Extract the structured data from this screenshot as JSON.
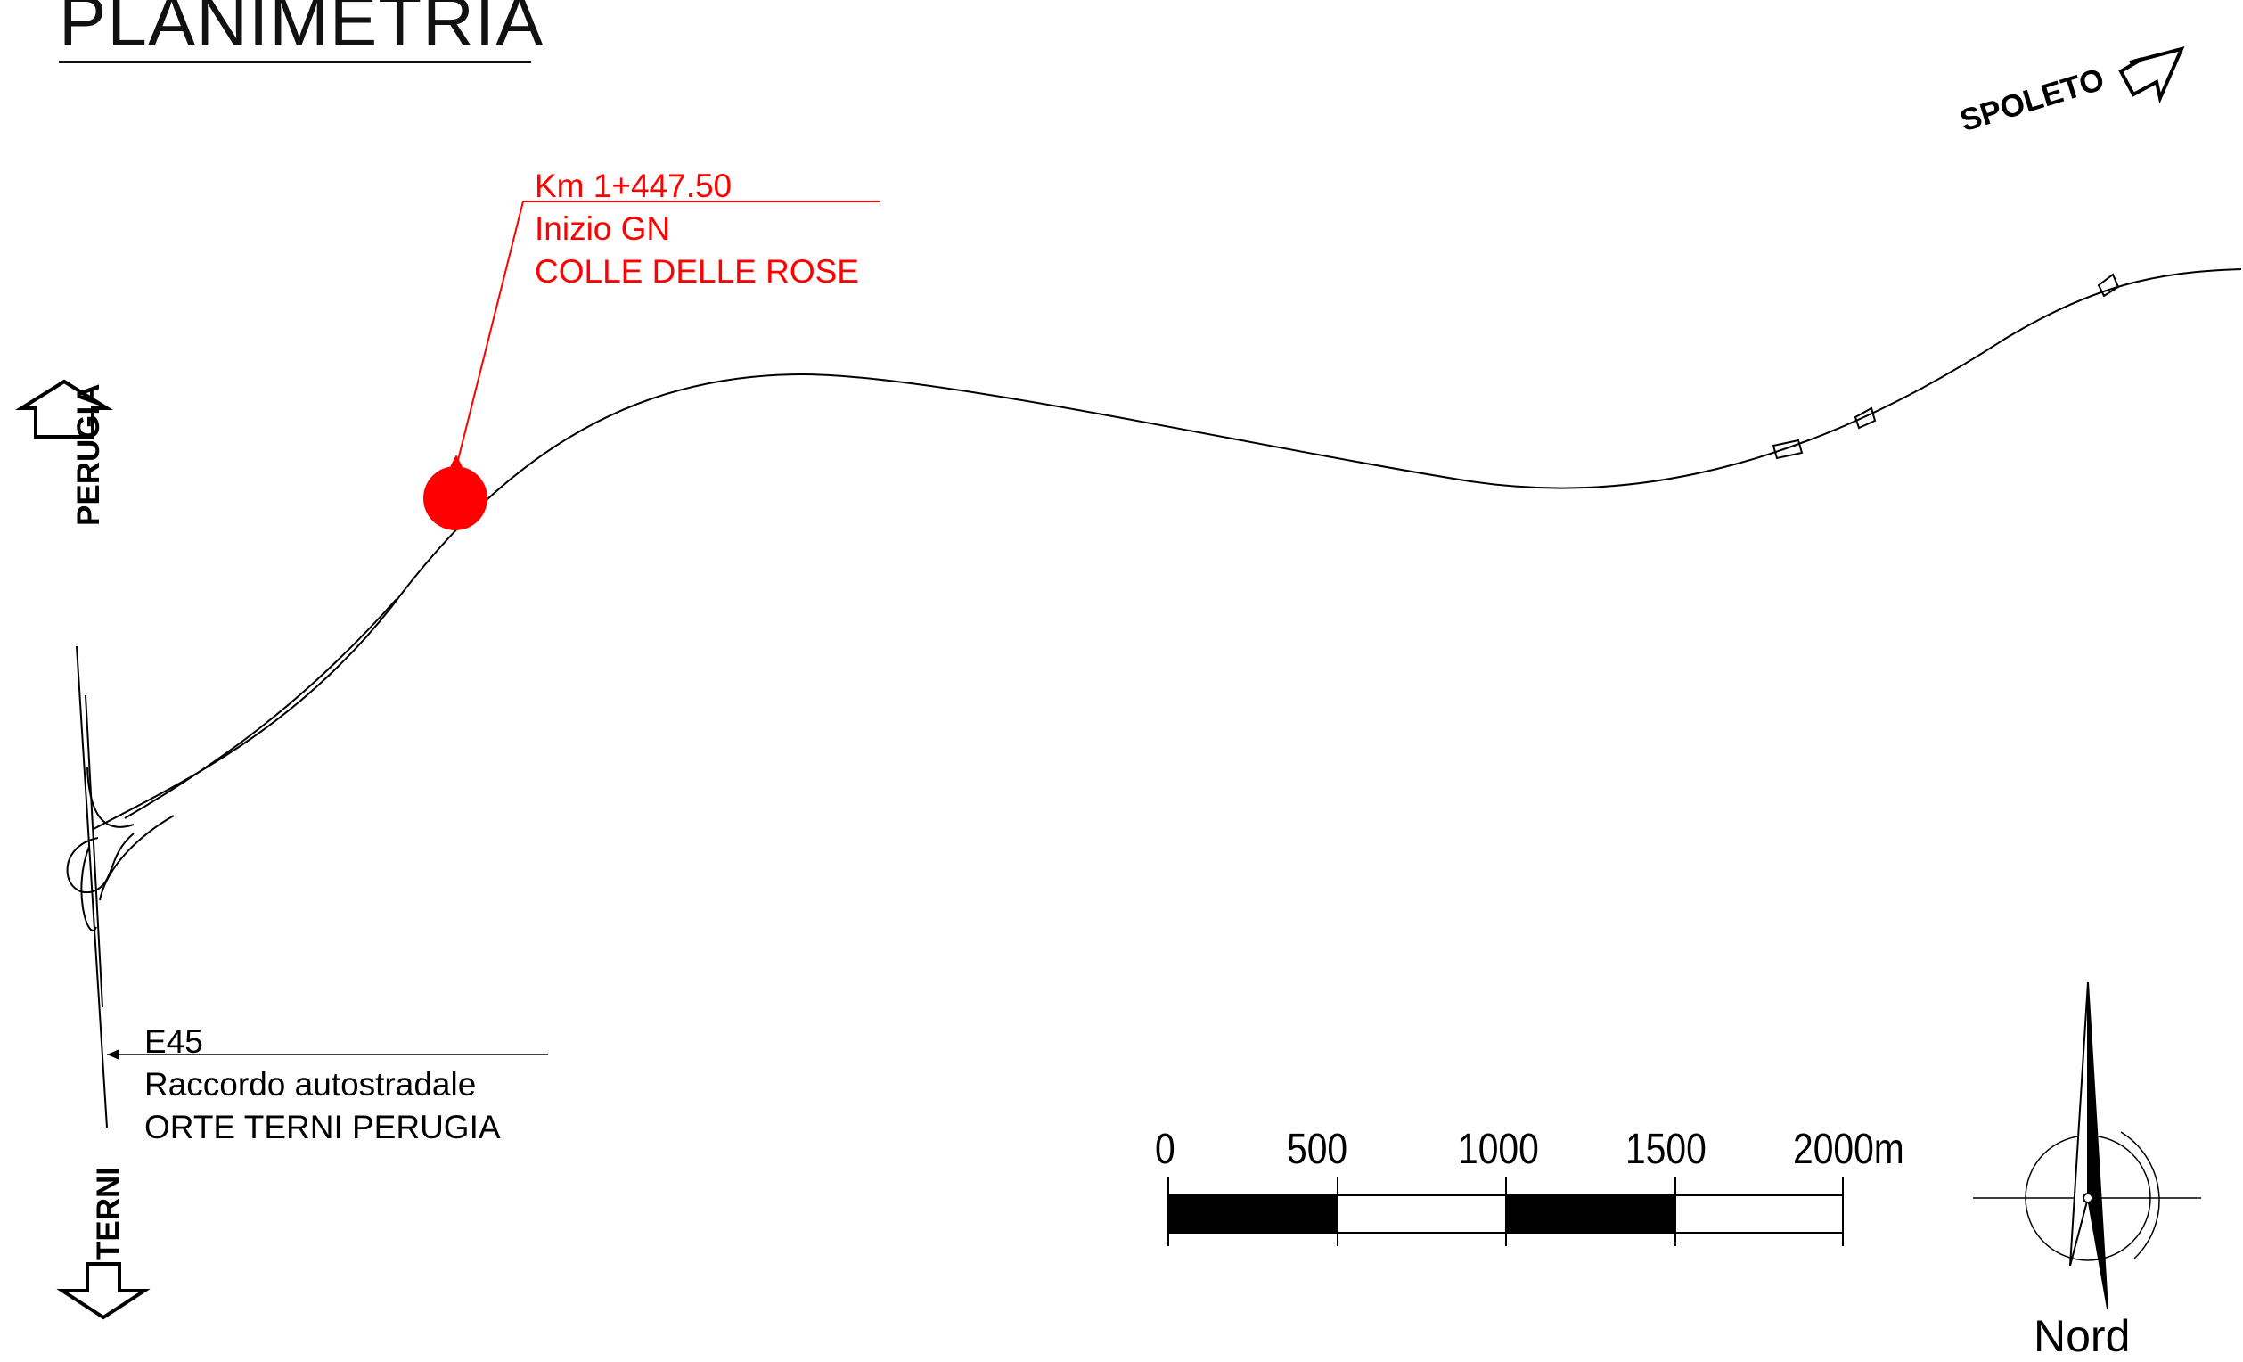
{
  "title": "PLANIMETRIA",
  "annotation": {
    "line1": "Km 1+447.50",
    "line2": "Inizio GN",
    "line3": "COLLE DELLE ROSE",
    "color": "#ff0000"
  },
  "highway_label": {
    "line1": "E45",
    "line2": "Raccordo autostradale",
    "line3": "ORTE  TERNI  PERUGIA"
  },
  "directions": {
    "north": "PERUGIA",
    "south": "TERNI",
    "east": "SPOLETO"
  },
  "scale_bar": {
    "labels": [
      "0",
      "500",
      "1000",
      "1500",
      "2000m"
    ]
  },
  "compass": {
    "label": "Nord",
    "icon": "north-arrow-icon"
  }
}
